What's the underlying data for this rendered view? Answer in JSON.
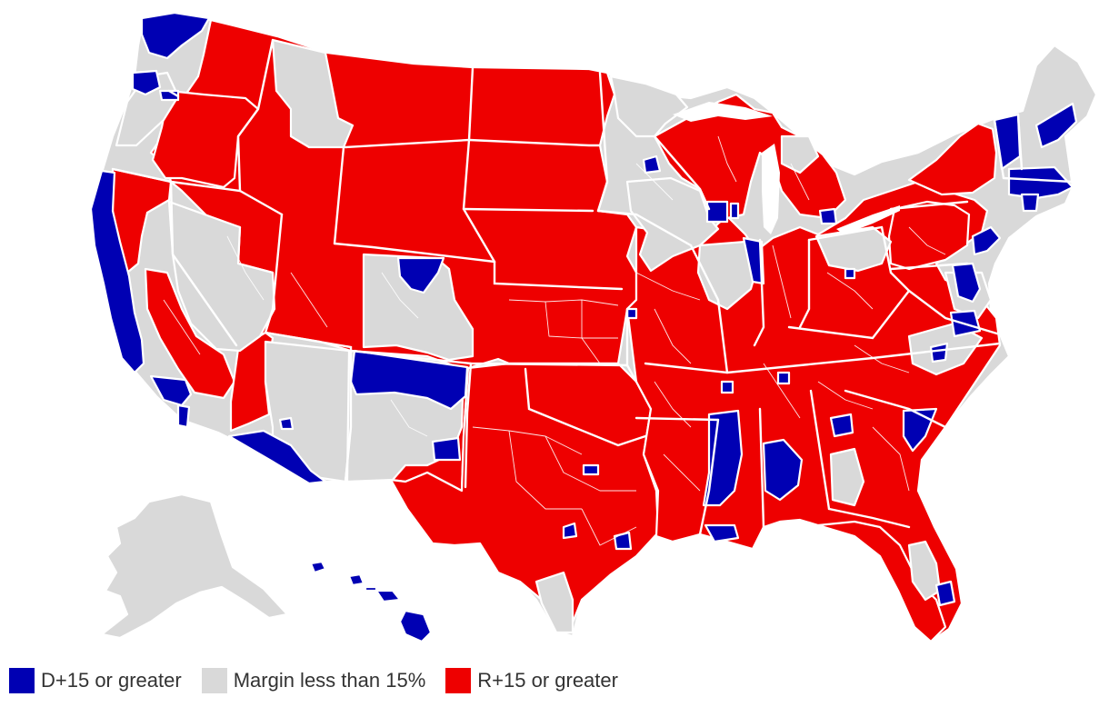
{
  "colors": {
    "dem": "#0000b3",
    "margin": "#d9d9d9",
    "rep": "#ee0000",
    "background": "#ffffff"
  },
  "legend": [
    {
      "label": "D+15 or greater",
      "color": "#0000b3"
    },
    {
      "label": "Margin less than 15%",
      "color": "#d9d9d9"
    },
    {
      "label": "R+15 or greater",
      "color": "#ee0000"
    }
  ]
}
